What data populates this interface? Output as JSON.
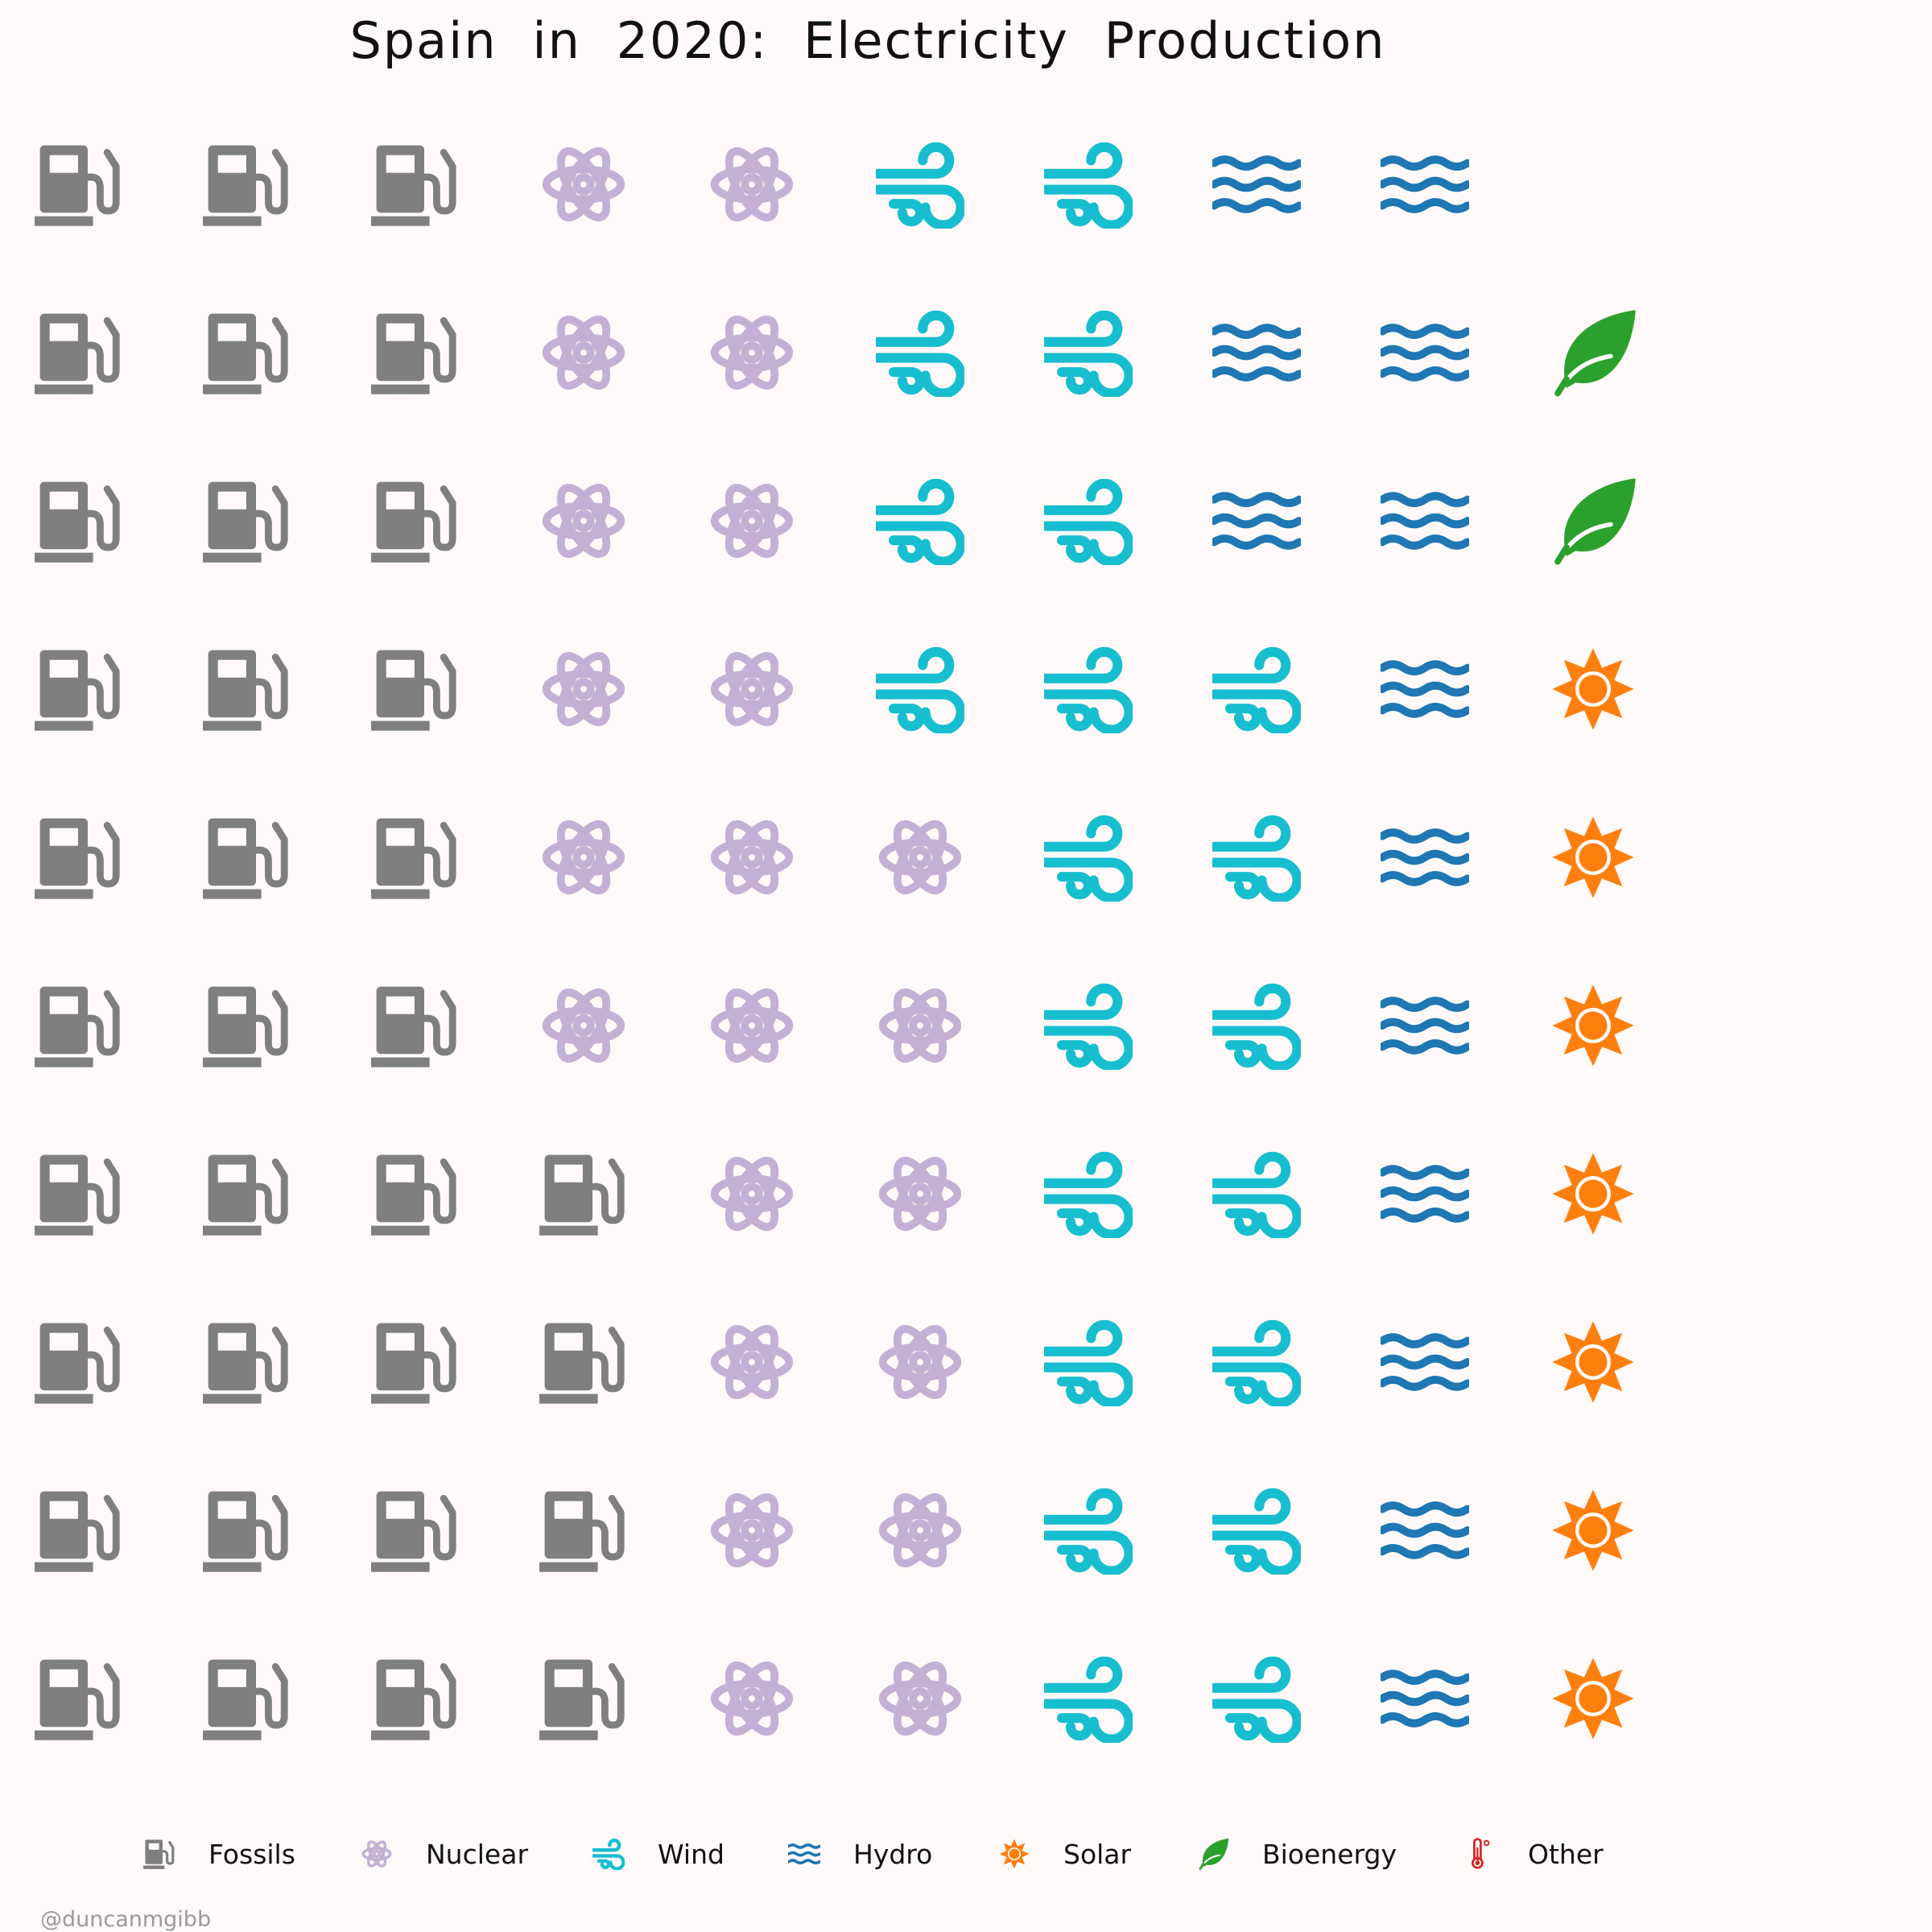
{
  "chart_data": {
    "type": "waffle",
    "title": "Spain in 2020: Electricity Production",
    "unit_note": "",
    "grid": {
      "rows": 10,
      "cols": 10
    },
    "categories": [
      "Fossils",
      "Nuclear",
      "Wind",
      "Hydro",
      "Solar",
      "Bioenergy",
      "Other"
    ],
    "values": [
      34,
      22,
      21,
      13,
      7,
      2,
      0
    ],
    "colors": {
      "Fossils": "#7f7f7f",
      "Nuclear": "#c5b0d5",
      "Wind": "#17becf",
      "Hydro": "#1f77b4",
      "Solar": "#ff7f0e",
      "Bioenergy": "#2ca02c",
      "Other": "#d62728"
    },
    "icons": {
      "Fossils": "gas-pump-icon",
      "Nuclear": "atom-icon",
      "Wind": "wind-icon",
      "Hydro": "water-icon",
      "Solar": "sun-icon",
      "Bioenergy": "leaf-icon",
      "Other": "thermometer-icon"
    },
    "fill_order": "column-major, bottom-to-top, left-to-right",
    "legend_position": "bottom"
  },
  "credit": "@duncanmgibb"
}
